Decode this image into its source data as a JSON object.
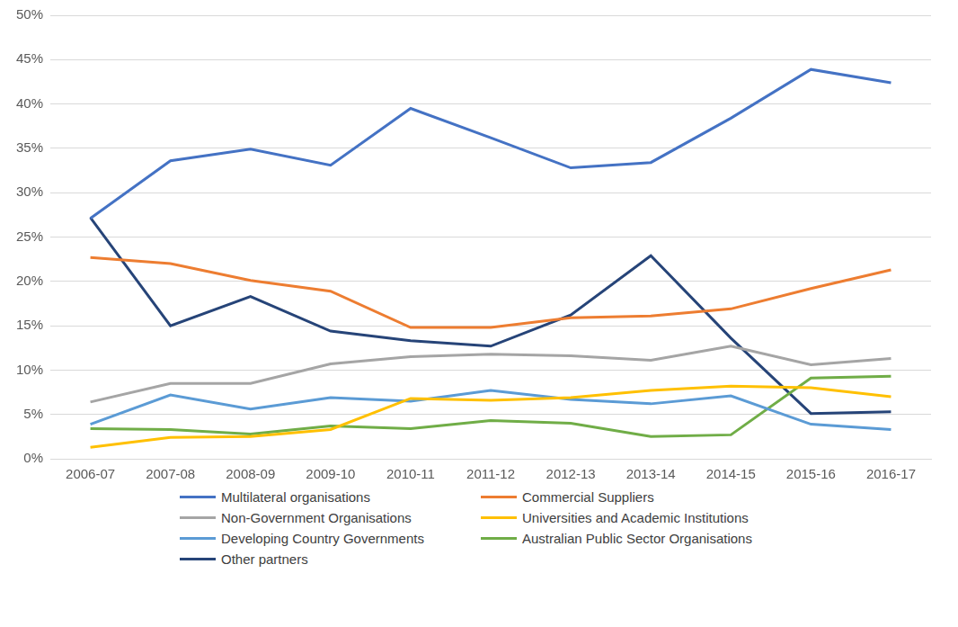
{
  "chart_data": {
    "type": "line",
    "categories": [
      "2006-07",
      "2007-08",
      "2008-09",
      "2009-10",
      "2010-11",
      "2011-12",
      "2012-13",
      "2013-14",
      "2014-15",
      "2015-16",
      "2016-17"
    ],
    "series": [
      {
        "name": "Multilateral organisations",
        "color": "#4472c4",
        "values": [
          27.1,
          33.6,
          34.9,
          33.1,
          39.5,
          36.2,
          32.8,
          33.4,
          38.4,
          43.9,
          42.4
        ]
      },
      {
        "name": "Commercial Suppliers",
        "color": "#ed7d31",
        "values": [
          22.7,
          22.0,
          20.1,
          18.9,
          14.8,
          14.8,
          15.9,
          16.1,
          16.9,
          19.2,
          21.3
        ]
      },
      {
        "name": "Non-Government Organisations",
        "color": "#a5a5a5",
        "values": [
          6.4,
          8.5,
          8.5,
          10.7,
          11.5,
          11.8,
          11.6,
          11.1,
          12.7,
          10.6,
          11.3
        ]
      },
      {
        "name": "Universities and Academic Institutions",
        "color": "#ffc000",
        "values": [
          1.3,
          2.4,
          2.5,
          3.3,
          6.8,
          6.6,
          6.9,
          7.7,
          8.2,
          8.0,
          7.0
        ]
      },
      {
        "name": "Developing Country Governments",
        "color": "#5b9bd5",
        "values": [
          3.9,
          7.2,
          5.6,
          6.9,
          6.5,
          7.7,
          6.7,
          6.2,
          7.1,
          3.9,
          3.3
        ]
      },
      {
        "name": "Australian Public Sector Organisations",
        "color": "#70ad47",
        "values": [
          3.4,
          3.3,
          2.8,
          3.7,
          3.4,
          4.3,
          4.0,
          2.5,
          2.7,
          9.1,
          9.3
        ]
      },
      {
        "name": "Other partners",
        "color": "#264478",
        "values": [
          27.2,
          15.0,
          18.3,
          14.4,
          13.3,
          12.7,
          16.2,
          22.9,
          13.6,
          5.1,
          5.3
        ]
      }
    ],
    "ylim": [
      0,
      50
    ],
    "yticks": [
      {
        "value": 0,
        "label": "0%"
      },
      {
        "value": 5,
        "label": "5%"
      },
      {
        "value": 10,
        "label": "10%"
      },
      {
        "value": 15,
        "label": "15%"
      },
      {
        "value": 20,
        "label": "20%"
      },
      {
        "value": 25,
        "label": "25%"
      },
      {
        "value": 30,
        "label": "30%"
      },
      {
        "value": 35,
        "label": "35%"
      },
      {
        "value": 40,
        "label": "40%"
      },
      {
        "value": 45,
        "label": "45%"
      },
      {
        "value": 50,
        "label": "50%"
      }
    ],
    "grid": true,
    "legend": "bottom"
  }
}
